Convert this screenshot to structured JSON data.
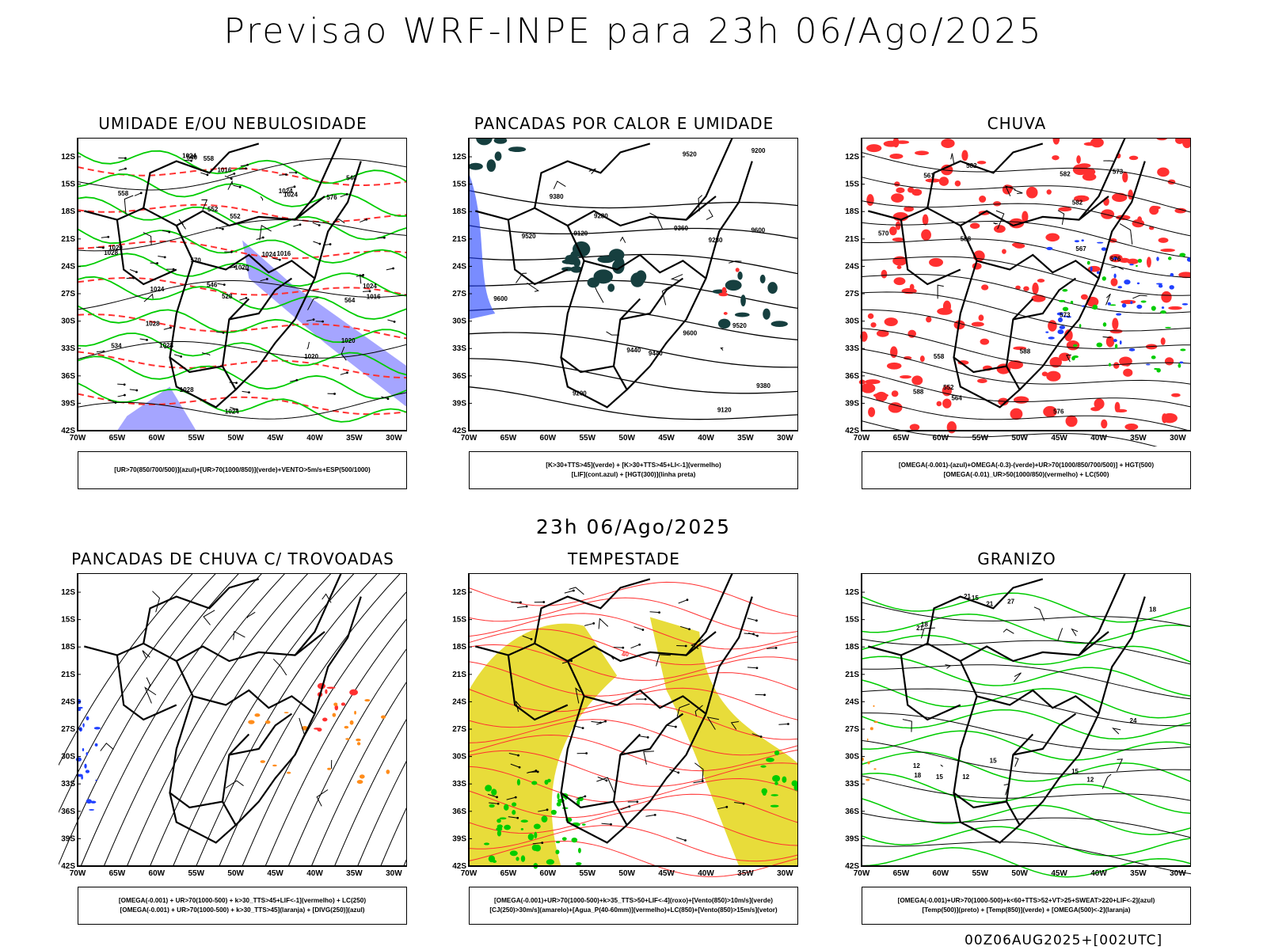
{
  "header": {
    "title": "Previsao WRF-INPE  para 23h 06/Ago/2025"
  },
  "middle_title": "23h 06/Ago/2025",
  "footer": {
    "run_code": "00Z06AUG2025+[002UTC]"
  },
  "axes": {
    "lat_labels": [
      "12S",
      "15S",
      "18S",
      "21S",
      "24S",
      "27S",
      "30S",
      "33S",
      "36S",
      "39S",
      "42S"
    ],
    "lon_labels": [
      "70W",
      "65W",
      "60W",
      "55W",
      "50W",
      "45W",
      "40W",
      "35W",
      "30W"
    ]
  },
  "colors": {
    "blue_fill": "#8f8fff",
    "dark_teal": "#163f3f",
    "red": "#ff3030",
    "green": "#00cc00",
    "yellow": "#e8dc3a",
    "orange": "#ff8c1a",
    "blue": "#2040ff"
  },
  "panels": [
    {
      "title": "UMIDADE E/OU NEBULOSIDADE",
      "legend": [
        "[UR>70(850/700/500)](azul)+[UR>70(1000/850)](verde)+VENTO>5m/s+ESP(500/1000)"
      ],
      "contour_labels": [
        "1016",
        "1016",
        "1016",
        "1020",
        "1020",
        "1020",
        "1020",
        "1024",
        "1024",
        "1024",
        "1024",
        "1024",
        "1024",
        "1028",
        "1028",
        "1028",
        "1028",
        "1024",
        "576",
        "570",
        "564",
        "558",
        "552",
        "546",
        "540",
        "534",
        "528",
        "540",
        "552",
        "558"
      ]
    },
    {
      "title": "PANCADAS POR CALOR E UMIDADE",
      "legend": [
        "[K>30+TTS>45](verde) + [K>30+TTS>45+LI<-1](vermelho)",
        "[LIF](cont.azul) + [HGT(300)](linha preta)"
      ],
      "contour_labels": [
        "9600",
        "9600",
        "9600",
        "9520",
        "9520",
        "9520",
        "9440",
        "9440",
        "9380",
        "9380",
        "9360",
        "9280",
        "9280",
        "9200",
        "9200",
        "9120",
        "9120"
      ]
    },
    {
      "title": "CHUVA",
      "legend": [
        "[OMEGA(-0.001)-(azul)+OMEGA(-0.3)-(verde)+UR>70(1000/850/700/500)] + HGT(500)",
        "[OMEGA(-0.01)_UR>50(1000/850)(vermelho) + LC(500)"
      ],
      "contour_labels": [
        "588",
        "588",
        "588",
        "582",
        "582",
        "576",
        "576",
        "573",
        "573",
        "570",
        "567",
        "564",
        "561",
        "558",
        "552",
        "582"
      ]
    },
    {
      "title": "PANCADAS DE CHUVA C/ TROVOADAS",
      "legend": [
        "[OMEGA(-0.001) + UR>70(1000-500) + k>30_TTS>45+LIF<-1](vermelho) + LC(250)",
        "[OMEGA(-0.001) + UR>70(1000-500) + k>30_TTS>45](laranja) + [DIVG(250)](azul)"
      ],
      "contour_labels": []
    },
    {
      "title": "TEMPESTADE",
      "legend": [
        "[OMEGA(-0.001)+UR>70(1000-500)+k>35_TTS>50+LIF<-4](roxo)+[Vento(850)>10m/s](verde)",
        "[CJ(250)>30m/s](amarelo)+[Agua_P(40-60mm)](vermelho)+LC(850)+[Vento(850)>15m/s](vetor)"
      ],
      "contour_labels": [
        "40"
      ]
    },
    {
      "title": "GRANIZO",
      "legend": [
        "[OMEGA(-0.001)+UR>70(1000-500)+k<60+TTS>52+VT>25+SWEAT>220+LIF<-2](azul)",
        "[Temp(500)](preto) + [Temp(850)](verde) + [OMEGA(500)<-2](laranja)"
      ],
      "contour_labels": [
        "12",
        "15",
        "15",
        "15",
        "12",
        "18",
        "18",
        "21",
        "21",
        "24",
        "27",
        "15",
        "18",
        "21",
        "12"
      ]
    }
  ]
}
